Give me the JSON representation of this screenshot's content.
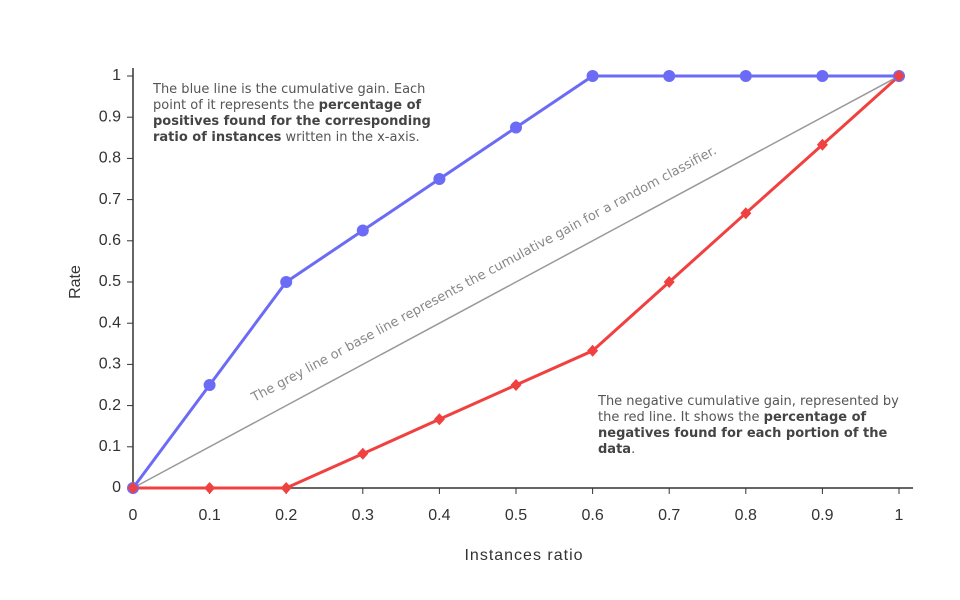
{
  "chart_data": {
    "type": "line",
    "x_label": "Instances ratio",
    "y_label": "Rate",
    "x": [
      0,
      0.1,
      0.2,
      0.3,
      0.4,
      0.5,
      0.6,
      0.7,
      0.8,
      0.9,
      1
    ],
    "series": [
      {
        "color": "#6b6bf5",
        "marker": "circle",
        "values": [
          0,
          0.25,
          0.5,
          0.625,
          0.75,
          0.875,
          1,
          1,
          1,
          1,
          1
        ]
      },
      {
        "color": "#f04040",
        "marker": "diamond",
        "values": [
          0,
          0,
          0,
          0.083,
          0.167,
          0.25,
          0.333,
          0.5,
          0.667,
          0.833,
          1
        ]
      },
      {
        "color": "#999999",
        "marker": "none",
        "x": [
          0,
          1
        ],
        "values": [
          0,
          1
        ]
      }
    ],
    "xlim": [
      0,
      1
    ],
    "ylim": [
      0,
      1
    ],
    "xticks": [
      0,
      0.1,
      0.2,
      0.3,
      0.4,
      0.5,
      0.6,
      0.7,
      0.8,
      0.9,
      1
    ],
    "yticks": [
      0,
      0.1,
      0.2,
      0.3,
      0.4,
      0.5,
      0.6,
      0.7,
      0.8,
      0.9,
      1
    ],
    "grid": false,
    "annotations": [
      {
        "parts": [
          {
            "text": "The blue line is the cumulative gain. Each point of it represents the ",
            "bold": false
          },
          {
            "text": "percentage of positives found for the corresponding ratio of instances",
            "bold": true
          },
          {
            "text": " written in the x-axis.",
            "bold": false
          }
        ]
      },
      {
        "parts": [
          {
            "text": "The negative cumulative gain, represented by the red line. It shows the ",
            "bold": false
          },
          {
            "text": "percentage of negatives found for each portion of the data",
            "bold": true
          },
          {
            "text": ".",
            "bold": false
          }
        ]
      },
      {
        "parts": [
          {
            "text": "The grey line or base line represents the cumulative gain for a random classifier.",
            "bold": false
          }
        ]
      }
    ]
  }
}
